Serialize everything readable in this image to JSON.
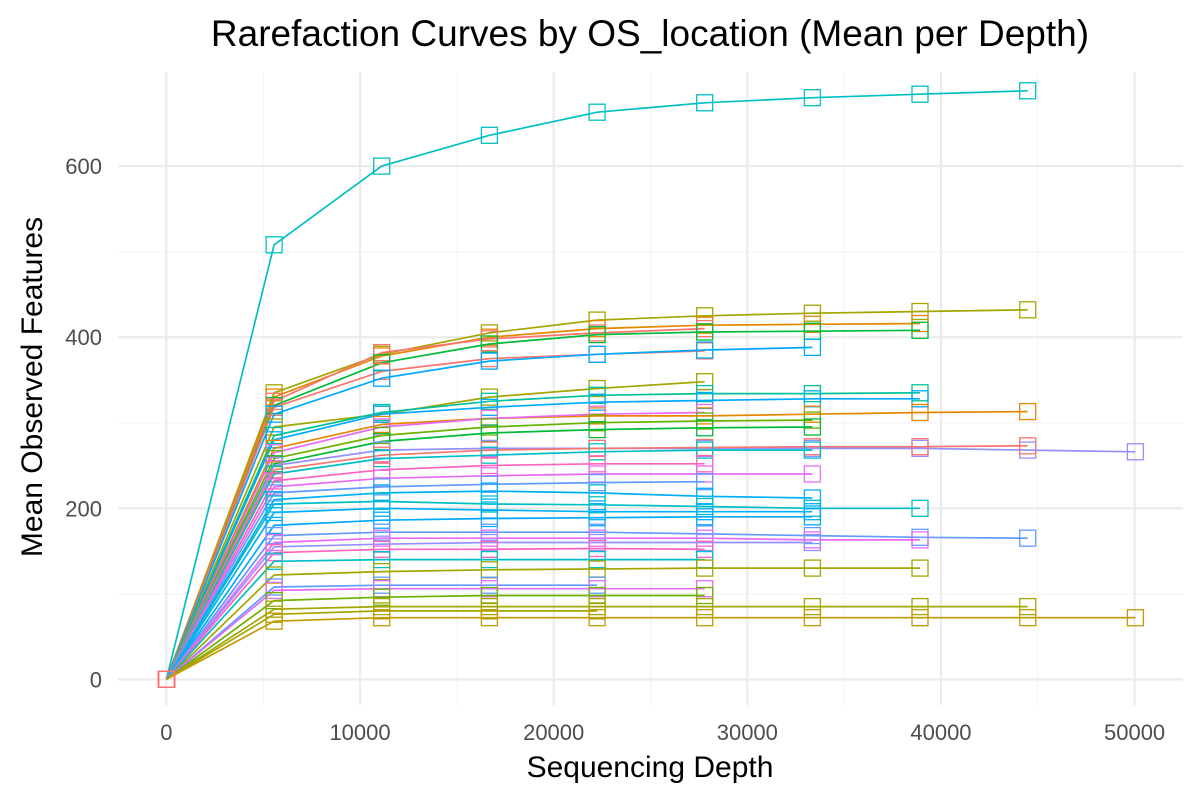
{
  "chart_data": {
    "type": "line",
    "title": "Rarefaction Curves by OS_location (Mean per Depth)",
    "xlabel": "Sequencing Depth",
    "ylabel": "Mean Observed Features",
    "xlim": [
      -2500,
      52500
    ],
    "ylim": [
      -30,
      710
    ],
    "x_ticks": [
      0,
      10000,
      20000,
      30000,
      40000,
      50000
    ],
    "x_tick_labels": [
      "0",
      "10000",
      "20000",
      "30000",
      "40000",
      "50000"
    ],
    "y_ticks": [
      0,
      200,
      400,
      600
    ],
    "y_tick_labels": [
      "0",
      "200",
      "400",
      "600"
    ],
    "grid": true,
    "legend": "none",
    "marker": "open-square",
    "depths": [
      0,
      5560,
      11120,
      16680,
      22240,
      27800,
      33360,
      38920,
      44480,
      50040
    ],
    "series": [
      {
        "color": "#00BFC4",
        "values": [
          0,
          508,
          600,
          636,
          663,
          674,
          680,
          684,
          688
        ]
      },
      {
        "color": "#A3A500",
        "values": [
          0,
          335,
          380,
          405,
          420,
          425,
          428,
          430,
          432
        ]
      },
      {
        "color": "#E58700",
        "values": [
          0,
          330,
          378,
          400,
          410,
          414,
          415,
          416
        ]
      },
      {
        "color": "#F8766D",
        "values": [
          0,
          325,
          382,
          398,
          405,
          410
        ]
      },
      {
        "color": "#00BA38",
        "values": [
          0,
          320,
          370,
          392,
          403,
          406,
          407,
          408
        ]
      },
      {
        "color": "#F8766D",
        "values": [
          0,
          318,
          360,
          375,
          380,
          384
        ]
      },
      {
        "color": "#00A9FF",
        "values": [
          0,
          310,
          352,
          372,
          380,
          385,
          388
        ]
      },
      {
        "color": "#A3A500",
        "values": [
          0,
          295,
          310,
          330,
          340,
          348
        ]
      },
      {
        "color": "#00C19A",
        "values": [
          0,
          285,
          312,
          325,
          332,
          334,
          334,
          335
        ]
      },
      {
        "color": "#00A9FF",
        "values": [
          0,
          280,
          310,
          318,
          324,
          326,
          328,
          328
        ]
      },
      {
        "color": "#E58700",
        "values": [
          0,
          270,
          298,
          305,
          308,
          308,
          310,
          312,
          313
        ]
      },
      {
        "color": "#E76BF3",
        "values": [
          0,
          265,
          295,
          305,
          310,
          312
        ]
      },
      {
        "color": "#6BB100",
        "values": [
          0,
          258,
          285,
          295,
          300,
          302,
          303
        ]
      },
      {
        "color": "#00BA38",
        "values": [
          0,
          252,
          278,
          288,
          292,
          294,
          295
        ]
      },
      {
        "color": "#9590FF",
        "values": [
          0,
          250,
          268,
          270,
          270,
          270,
          270,
          270,
          268,
          266
        ]
      },
      {
        "color": "#F8766D",
        "values": [
          0,
          245,
          262,
          268,
          270,
          271,
          272,
          272,
          273
        ]
      },
      {
        "color": "#00BFC4",
        "values": [
          0,
          240,
          258,
          262,
          266,
          268,
          268
        ]
      },
      {
        "color": "#FF62BC",
        "values": [
          0,
          232,
          245,
          250,
          252,
          252
        ]
      },
      {
        "color": "#E76BF3",
        "values": [
          0,
          225,
          235,
          238,
          240,
          240,
          240
        ]
      },
      {
        "color": "#619CFF",
        "values": [
          0,
          218,
          225,
          228,
          230,
          231
        ]
      },
      {
        "color": "#00B0F6",
        "values": [
          0,
          210,
          218,
          220,
          218,
          214,
          212
        ]
      },
      {
        "color": "#00BFC4",
        "values": [
          0,
          205,
          208,
          205,
          204,
          202,
          200,
          200
        ]
      },
      {
        "color": "#00B0F6",
        "values": [
          0,
          195,
          200,
          198,
          196,
          196,
          196
        ]
      },
      {
        "color": "#00A9FF",
        "values": [
          0,
          180,
          186,
          188,
          189,
          190,
          190
        ]
      },
      {
        "color": "#619CFF",
        "values": [
          0,
          168,
          172,
          172,
          172,
          170,
          168,
          166,
          165
        ]
      },
      {
        "color": "#E76BF3",
        "values": [
          0,
          160,
          165,
          165,
          165,
          165,
          163,
          163
        ]
      },
      {
        "color": "#9590FF",
        "values": [
          0,
          155,
          158,
          160,
          160,
          160,
          160
        ]
      },
      {
        "color": "#FF62BC",
        "values": [
          0,
          148,
          152,
          152,
          153,
          152
        ]
      },
      {
        "color": "#00BFC4",
        "values": [
          0,
          138,
          140,
          140,
          140,
          140
        ]
      },
      {
        "color": "#A3A500",
        "values": [
          0,
          122,
          126,
          128,
          129,
          130,
          130,
          130
        ]
      },
      {
        "color": "#619CFF",
        "values": [
          0,
          108,
          110,
          110,
          110
        ]
      },
      {
        "color": "#E76BF3",
        "values": [
          0,
          104,
          106,
          106,
          106,
          106
        ]
      },
      {
        "color": "#6BB100",
        "values": [
          0,
          92,
          96,
          98,
          98,
          98
        ]
      },
      {
        "color": "#A3A500",
        "values": [
          0,
          82,
          85,
          85,
          85,
          85,
          85,
          85,
          85
        ]
      },
      {
        "color": "#A3A500",
        "values": [
          0,
          76,
          80,
          80,
          80
        ]
      },
      {
        "color": "#C49A00",
        "values": [
          0,
          68,
          72,
          72,
          72,
          72,
          72,
          72,
          72,
          72
        ]
      }
    ]
  }
}
